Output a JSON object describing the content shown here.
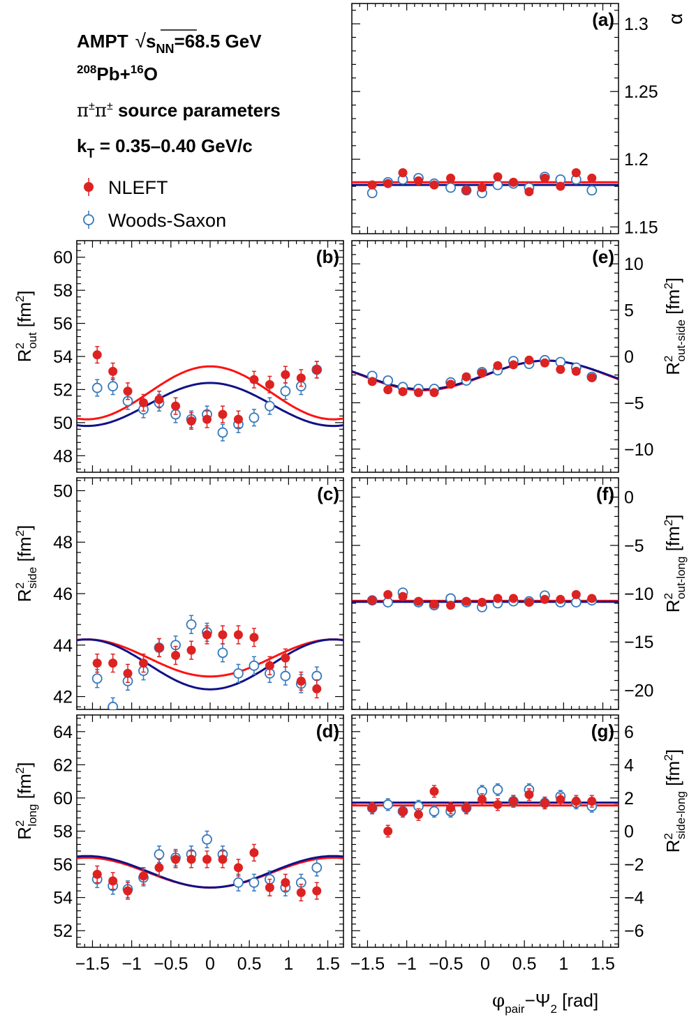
{
  "header": {
    "line1_model": "AMPT",
    "line1_energy_sym": "√",
    "line1_s": "s",
    "line1_sub": "NN",
    "line1_value": "=68.5 GeV",
    "line2_pb_sup": "208",
    "line2_pb": "Pb+",
    "line2_o_sup": "16",
    "line2_o": "O",
    "line3_particles": "π",
    "line3_pm": "±",
    "line3_text": " source parameters",
    "line4_k": "k",
    "line4_sub": "T",
    "line4_text": " = 0.35–0.40 GeV/c"
  },
  "legend": {
    "nleft": "NLEFT",
    "ws": "Woods-Saxon"
  },
  "colors": {
    "nleft": "#dd2222",
    "nleft_line": "#ff1111",
    "ws": "#3377bb",
    "ws_line": "#111188"
  },
  "xaxis": {
    "range": [
      -1.7,
      1.7
    ],
    "ticks": [
      -1.5,
      -1,
      -0.5,
      0,
      0.5,
      1,
      1.5
    ],
    "tick_labels": [
      "−1.5",
      "−1",
      "−0.5",
      "0",
      "0.5",
      "1",
      "1.5"
    ],
    "label_phi": "φ",
    "label_pair": "pair",
    "label_mid": "−Ψ",
    "label_two": "2",
    "label_unit": " [rad]"
  },
  "chart_data": [
    {
      "panel": "(a)",
      "type": "scatter",
      "ylabel_symbol": "α",
      "ylim": [
        1.145,
        1.315
      ],
      "yticks": [
        1.15,
        1.2,
        1.25,
        1.3
      ],
      "ytick_labels": [
        "1.15",
        "1.2",
        "1.25",
        "1.3"
      ],
      "x": [
        -1.44,
        -1.24,
        -1.05,
        -0.85,
        -0.65,
        -0.44,
        -0.24,
        -0.04,
        0.16,
        0.36,
        0.56,
        0.76,
        0.96,
        1.16,
        1.36
      ],
      "nleft": [
        1.181,
        1.182,
        1.19,
        1.184,
        1.181,
        1.186,
        1.177,
        1.179,
        1.187,
        1.183,
        1.176,
        1.186,
        1.18,
        1.19,
        1.186
      ],
      "nleft_err": 0.002,
      "ws": [
        1.175,
        1.183,
        1.185,
        1.186,
        1.182,
        1.179,
        1.177,
        1.175,
        1.181,
        1.182,
        1.179,
        1.187,
        1.185,
        1.185,
        1.177
      ],
      "ws_err": 0.002,
      "fit_nleft": {
        "mean": 1.183,
        "amp": 0.0
      },
      "fit_ws": {
        "mean": 1.181,
        "amp": 0.0
      }
    },
    {
      "panel": "(b)",
      "type": "scatter",
      "ylabel": "R",
      "ylabel_sup": "2",
      "ylabel_sub": "out",
      "ylabel_unit": " [fm",
      "ylabel_unit_sup": "2",
      "ylabel_close": "]",
      "ylim": [
        47,
        61
      ],
      "yticks": [
        48,
        50,
        52,
        54,
        56,
        58,
        60
      ],
      "ytick_labels": [
        "48",
        "50",
        "52",
        "54",
        "56",
        "58",
        "60"
      ],
      "x": [
        -1.44,
        -1.24,
        -1.05,
        -0.85,
        -0.65,
        -0.44,
        -0.24,
        -0.04,
        0.16,
        0.36,
        0.56,
        0.76,
        0.96,
        1.16,
        1.36
      ],
      "nleft": [
        54.1,
        53.1,
        51.9,
        51.2,
        51.4,
        51.0,
        50.1,
        50.2,
        50.5,
        50.2,
        52.6,
        52.3,
        52.9,
        52.7,
        53.2
      ],
      "nleft_err": 0.5,
      "ws": [
        52.1,
        52.2,
        51.3,
        50.8,
        51.2,
        50.5,
        50.2,
        50.5,
        49.4,
        49.9,
        50.3,
        51.0,
        51.9,
        52.2,
        53.2
      ],
      "ws_err": 0.5,
      "fit_nleft": {
        "mean": 51.8,
        "amp": 1.6
      },
      "fit_ws": {
        "mean": 51.1,
        "amp": 1.3
      }
    },
    {
      "panel": "(c)",
      "type": "scatter",
      "ylabel": "R",
      "ylabel_sup": "2",
      "ylabel_sub": "side",
      "ylabel_unit": " [fm",
      "ylabel_unit_sup": "2",
      "ylabel_close": "]",
      "ylim": [
        41.5,
        50.5
      ],
      "yticks": [
        42,
        44,
        46,
        48,
        50
      ],
      "ytick_labels": [
        "42",
        "44",
        "46",
        "48",
        "50"
      ],
      "x": [
        -1.44,
        -1.24,
        -1.05,
        -0.85,
        -0.65,
        -0.44,
        -0.24,
        -0.04,
        0.16,
        0.36,
        0.56,
        0.76,
        0.96,
        1.16,
        1.36
      ],
      "nleft": [
        43.3,
        43.3,
        42.9,
        43.3,
        43.9,
        43.6,
        43.8,
        44.4,
        44.4,
        44.4,
        44.3,
        43.2,
        43.5,
        42.6,
        42.3
      ],
      "nleft_err": 0.35,
      "ws": [
        42.7,
        41.6,
        42.6,
        43.0,
        43.9,
        44.0,
        44.8,
        44.5,
        43.7,
        42.9,
        43.2,
        42.9,
        42.8,
        42.5,
        42.8
      ],
      "ws_err": 0.35,
      "fit_nleft": {
        "mean": 43.5,
        "amp": -0.72
      },
      "fit_ws": {
        "mean": 43.25,
        "amp": -0.97
      }
    },
    {
      "panel": "(d)",
      "type": "scatter",
      "ylabel": "R",
      "ylabel_sup": "2",
      "ylabel_sub": "long",
      "ylabel_unit": " [fm",
      "ylabel_unit_sup": "2",
      "ylabel_close": "]",
      "ylim": [
        51,
        65
      ],
      "yticks": [
        52,
        54,
        56,
        58,
        60,
        62,
        64
      ],
      "ytick_labels": [
        "52",
        "54",
        "56",
        "58",
        "60",
        "62",
        "64"
      ],
      "x": [
        -1.44,
        -1.24,
        -1.05,
        -0.85,
        -0.65,
        -0.44,
        -0.24,
        -0.04,
        0.16,
        0.36,
        0.56,
        0.76,
        0.96,
        1.16,
        1.36
      ],
      "nleft": [
        55.4,
        55.0,
        54.4,
        55.3,
        55.8,
        56.3,
        56.3,
        56.3,
        56.3,
        55.8,
        56.7,
        54.6,
        54.9,
        54.3,
        54.4
      ],
      "nleft_err": 0.5,
      "ws": [
        55.1,
        54.7,
        54.5,
        55.2,
        56.6,
        56.4,
        56.6,
        57.5,
        56.6,
        54.9,
        54.9,
        55.1,
        54.6,
        54.9,
        55.8
      ],
      "ws_err": 0.5,
      "fit_nleft": {
        "mean": 55.5,
        "amp": -0.9
      },
      "fit_ws": {
        "mean": 55.55,
        "amp": -0.95
      }
    },
    {
      "panel": "(e)",
      "type": "scatter",
      "ylabel": "R",
      "ylabel_sup": "2",
      "ylabel_sub": "out-side",
      "ylabel_unit": " [fm",
      "ylabel_unit_sup": "2",
      "ylabel_close": "]",
      "ylim": [
        -12.5,
        12.5
      ],
      "yticks": [
        -10,
        -5,
        0,
        5,
        10
      ],
      "ytick_labels": [
        "−10",
        "−5",
        "0",
        "5",
        "10"
      ],
      "x": [
        -1.44,
        -1.24,
        -1.05,
        -0.85,
        -0.65,
        -0.44,
        -0.24,
        -0.04,
        0.16,
        0.36,
        0.56,
        0.76,
        0.96,
        1.16,
        1.36
      ],
      "nleft": [
        -2.7,
        -3.6,
        -3.8,
        -3.9,
        -3.9,
        -3.0,
        -2.2,
        -1.8,
        -1.0,
        -0.9,
        -0.4,
        -0.7,
        -1.4,
        -1.6,
        -2.3
      ],
      "nleft_err": 0.3,
      "ws": [
        -2.1,
        -2.6,
        -3.3,
        -3.5,
        -3.5,
        -2.8,
        -2.6,
        -1.7,
        -1.5,
        -0.5,
        -0.8,
        -0.4,
        -0.6,
        -1.2,
        -2.2
      ],
      "ws_err": 0.3,
      "fit_nleft": {
        "sin_amp": 1.6,
        "mean": -2.05
      },
      "fit_ws": {
        "sin_amp": 1.55,
        "mean": -2.0
      }
    },
    {
      "panel": "(f)",
      "type": "scatter",
      "ylabel": "R",
      "ylabel_sup": "2",
      "ylabel_sub": "out-long",
      "ylabel_unit": " [fm",
      "ylabel_unit_sup": "2",
      "ylabel_close": "]",
      "ylim": [
        -22,
        2
      ],
      "yticks": [
        -20,
        -15,
        -10,
        -5,
        0
      ],
      "ytick_labels": [
        "−20",
        "−15",
        "−10",
        "−5",
        "0"
      ],
      "x": [
        -1.44,
        -1.24,
        -1.05,
        -0.85,
        -0.65,
        -0.44,
        -0.24,
        -0.04,
        0.16,
        0.36,
        0.56,
        0.76,
        0.96,
        1.16,
        1.36
      ],
      "nleft": [
        -10.7,
        -10.1,
        -10.3,
        -10.8,
        -11.1,
        -11.2,
        -10.8,
        -10.9,
        -10.5,
        -10.5,
        -10.9,
        -10.6,
        -10.6,
        -10.1,
        -10.5
      ],
      "nleft_err": 0.3,
      "ws": [
        -10.7,
        -10.9,
        -9.9,
        -10.9,
        -11.2,
        -10.5,
        -10.9,
        -11.4,
        -11.0,
        -10.8,
        -10.8,
        -10.2,
        -10.9,
        -10.9,
        -10.7
      ],
      "ws_err": 0.3,
      "fit_nleft": {
        "mean": -10.75,
        "amp": 0.0
      },
      "fit_ws": {
        "mean": -10.85,
        "amp": 0.0
      }
    },
    {
      "panel": "(g)",
      "type": "scatter",
      "ylabel": "R",
      "ylabel_sup": "2",
      "ylabel_sub": "side-long",
      "ylabel_unit": " [fm",
      "ylabel_unit_sup": "2",
      "ylabel_close": "]",
      "ylim": [
        -7,
        7
      ],
      "yticks": [
        -6,
        -4,
        -2,
        0,
        2,
        4,
        6
      ],
      "ytick_labels": [
        "−6",
        "−4",
        "−2",
        "0",
        "2",
        "4",
        "6"
      ],
      "x": [
        -1.44,
        -1.24,
        -1.05,
        -0.85,
        -0.65,
        -0.44,
        -0.24,
        -0.04,
        0.16,
        0.36,
        0.56,
        0.76,
        0.96,
        1.16,
        1.36
      ],
      "nleft": [
        1.4,
        0.0,
        1.2,
        1.0,
        2.4,
        1.4,
        1.4,
        1.9,
        1.6,
        1.8,
        2.2,
        1.7,
        1.9,
        1.8,
        1.8
      ],
      "nleft_err": 0.35,
      "ws": [
        1.4,
        1.6,
        1.2,
        1.5,
        1.2,
        1.2,
        1.4,
        2.4,
        2.5,
        1.8,
        2.5,
        1.7,
        2.1,
        1.7,
        1.5
      ],
      "ws_err": 0.35,
      "fit_nleft": {
        "mean": 1.55,
        "amp": 0.0
      },
      "fit_ws": {
        "mean": 1.72,
        "amp": 0.0
      }
    }
  ],
  "panel_labels": [
    "(a)",
    "(b)",
    "(c)",
    "(d)",
    "(e)",
    "(f)",
    "(g)"
  ]
}
